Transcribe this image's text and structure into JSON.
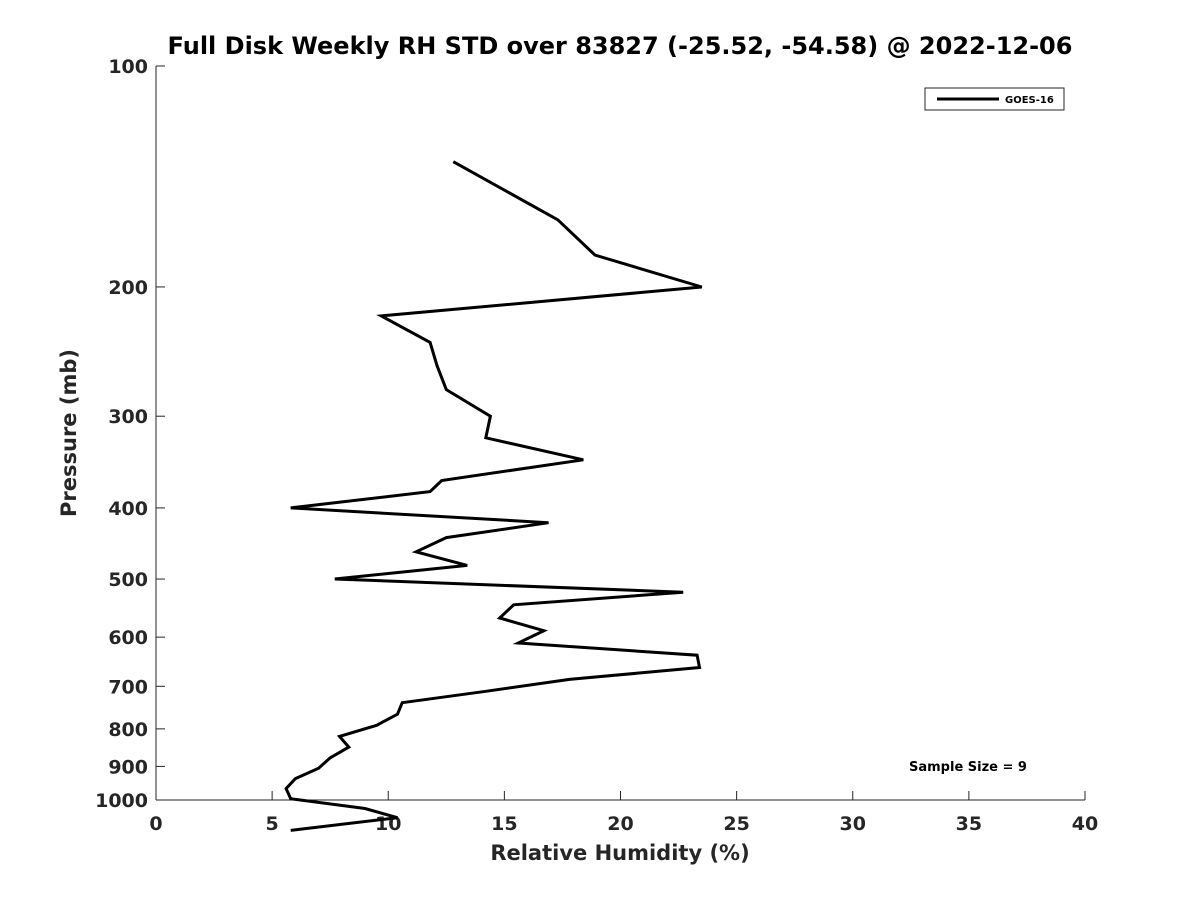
{
  "chart_data": {
    "type": "line",
    "title": "Full Disk Weekly RH STD over 83827 (-25.52, -54.58) @ 2022-12-06",
    "xlabel": "Relative Humidity (%)",
    "ylabel": "Pressure (mb)",
    "xlim": [
      0,
      40
    ],
    "ylim": [
      100,
      1000
    ],
    "y_scale": "log",
    "y_inverted": true,
    "x_ticks": [
      "0",
      "5",
      "10",
      "15",
      "20",
      "25",
      "30",
      "35",
      "40"
    ],
    "y_ticks": [
      "100",
      "200",
      "300",
      "400",
      "500",
      "600",
      "700",
      "800",
      "900",
      "1000"
    ],
    "grid": false,
    "legend_position": "top-right",
    "series": [
      {
        "name": "GOES-16",
        "color": "#000000",
        "points": [
          [
            12.8,
            135
          ],
          [
            17.3,
            162
          ],
          [
            18.9,
            181
          ],
          [
            23.5,
            200
          ],
          [
            9.7,
            219
          ],
          [
            11.8,
            238
          ],
          [
            12.1,
            256
          ],
          [
            12.5,
            276
          ],
          [
            14.4,
            300
          ],
          [
            14.2,
            321
          ],
          [
            18.4,
            344
          ],
          [
            12.3,
            367
          ],
          [
            11.8,
            380
          ],
          [
            5.8,
            400
          ],
          [
            16.9,
            419
          ],
          [
            12.5,
            439
          ],
          [
            11.2,
            459
          ],
          [
            13.4,
            479
          ],
          [
            7.7,
            500
          ],
          [
            22.7,
            521
          ],
          [
            15.4,
            542
          ],
          [
            14.8,
            565
          ],
          [
            16.7,
            588
          ],
          [
            15.6,
            611
          ],
          [
            23.3,
            635
          ],
          [
            23.4,
            660
          ],
          [
            17.8,
            685
          ],
          [
            14.2,
            711
          ],
          [
            10.6,
            737
          ],
          [
            10.4,
            764
          ],
          [
            9.5,
            791
          ],
          [
            7.9,
            819
          ],
          [
            8.3,
            847
          ],
          [
            7.5,
            876
          ],
          [
            7.0,
            905
          ],
          [
            6.0,
            935
          ],
          [
            5.6,
            965
          ],
          [
            5.8,
            996
          ],
          [
            9.0,
            1027
          ],
          [
            10.4,
            1057
          ],
          [
            5.8,
            1100
          ]
        ]
      }
    ],
    "annotations": [
      {
        "text": "Sample Size = 9"
      }
    ]
  }
}
